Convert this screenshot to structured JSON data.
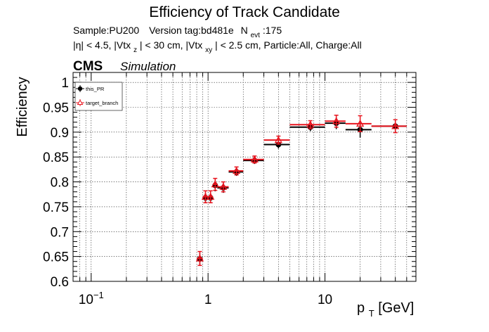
{
  "chart_data": {
    "type": "scatter",
    "title": "Efficiency of Track Candidate",
    "subtitle_line1": {
      "sample": "Sample:PU200",
      "version": "Version tag:bd481e",
      "nevt_label": "N",
      "nevt_sub": "evt",
      "nevt_value": ":175"
    },
    "subtitle_line2": {
      "part1": "|η| < 4.5, |Vtx",
      "sub1": "z",
      "part2": "| < 30 cm, |Vtx",
      "sub2": "xy",
      "part3": "| < 2.5 cm, Particle:All, Charge:All"
    },
    "cms_label": "CMS",
    "sim_label": "Simulation",
    "ylabel": "Efficiency",
    "xlabel_main": "p",
    "xlabel_sub": "T",
    "xlabel_unit": " [GeV]",
    "x_scale": "log",
    "xlim": [
      0.07,
      60
    ],
    "ylim": [
      0.6,
      1.02
    ],
    "x_tick_labels": [
      {
        "value": 0.1,
        "base": "10",
        "exp": "−1"
      },
      {
        "value": 1,
        "base": "1",
        "exp": ""
      },
      {
        "value": 10,
        "base": "10",
        "exp": ""
      }
    ],
    "y_ticks": [
      {
        "value": 0.6,
        "label": "0.6"
      },
      {
        "value": 0.65,
        "label": "0.65"
      },
      {
        "value": 0.7,
        "label": "0.7"
      },
      {
        "value": 0.75,
        "label": "0.75"
      },
      {
        "value": 0.8,
        "label": "0.8"
      },
      {
        "value": 0.85,
        "label": "0.85"
      },
      {
        "value": 0.9,
        "label": "0.9"
      },
      {
        "value": 0.95,
        "label": "0.95"
      },
      {
        "value": 1.0,
        "label": "1"
      }
    ],
    "grid": true,
    "legend_position": "top-left",
    "series": [
      {
        "name": "this_PR",
        "color": "#000000",
        "marker": "filled-circle",
        "points": [
          {
            "x": 0.85,
            "xlo": 0.8,
            "xhi": 0.9,
            "y": 0.645,
            "err": 0.012
          },
          {
            "x": 0.95,
            "xlo": 0.9,
            "xhi": 1.0,
            "y": 0.768,
            "err": 0.01
          },
          {
            "x": 1.05,
            "xlo": 1.0,
            "xhi": 1.1,
            "y": 0.768,
            "err": 0.01
          },
          {
            "x": 1.15,
            "xlo": 1.1,
            "xhi": 1.2,
            "y": 0.793,
            "err": 0.012
          },
          {
            "x": 1.35,
            "xlo": 1.2,
            "xhi": 1.5,
            "y": 0.788,
            "err": 0.01
          },
          {
            "x": 1.75,
            "xlo": 1.5,
            "xhi": 2.0,
            "y": 0.82,
            "err": 0.008
          },
          {
            "x": 2.5,
            "xlo": 2.0,
            "xhi": 3.0,
            "y": 0.843,
            "err": 0.007
          },
          {
            "x": 4.0,
            "xlo": 3.0,
            "xhi": 5.0,
            "y": 0.875,
            "err": 0.008
          },
          {
            "x": 7.5,
            "xlo": 5.0,
            "xhi": 10.0,
            "y": 0.91,
            "err": 0.008
          },
          {
            "x": 12.5,
            "xlo": 10.0,
            "xhi": 15.0,
            "y": 0.918,
            "err": 0.012
          },
          {
            "x": 20.0,
            "xlo": 15.0,
            "xhi": 25.0,
            "y": 0.905,
            "err": 0.016
          },
          {
            "x": 40.0,
            "xlo": 25.0,
            "xhi": 50.0,
            "y": 0.912,
            "err": 0.013
          }
        ]
      },
      {
        "name": "target_branch",
        "color": "#e8141e",
        "marker": "open-triangle",
        "points": [
          {
            "x": 0.85,
            "xlo": 0.8,
            "xhi": 0.9,
            "y": 0.646,
            "err": 0.014
          },
          {
            "x": 0.95,
            "xlo": 0.9,
            "xhi": 1.0,
            "y": 0.77,
            "err": 0.012
          },
          {
            "x": 1.05,
            "xlo": 1.0,
            "xhi": 1.1,
            "y": 0.77,
            "err": 0.012
          },
          {
            "x": 1.15,
            "xlo": 1.1,
            "xhi": 1.2,
            "y": 0.795,
            "err": 0.012
          },
          {
            "x": 1.35,
            "xlo": 1.2,
            "xhi": 1.5,
            "y": 0.79,
            "err": 0.01
          },
          {
            "x": 1.75,
            "xlo": 1.5,
            "xhi": 2.0,
            "y": 0.822,
            "err": 0.008
          },
          {
            "x": 2.5,
            "xlo": 2.0,
            "xhi": 3.0,
            "y": 0.845,
            "err": 0.007
          },
          {
            "x": 4.0,
            "xlo": 3.0,
            "xhi": 5.0,
            "y": 0.884,
            "err": 0.008
          },
          {
            "x": 7.5,
            "xlo": 5.0,
            "xhi": 10.0,
            "y": 0.915,
            "err": 0.008
          },
          {
            "x": 12.5,
            "xlo": 10.0,
            "xhi": 15.0,
            "y": 0.922,
            "err": 0.012
          },
          {
            "x": 20.0,
            "xlo": 15.0,
            "xhi": 25.0,
            "y": 0.917,
            "err": 0.016
          },
          {
            "x": 40.0,
            "xlo": 25.0,
            "xhi": 50.0,
            "y": 0.912,
            "err": 0.013
          }
        ]
      }
    ]
  }
}
